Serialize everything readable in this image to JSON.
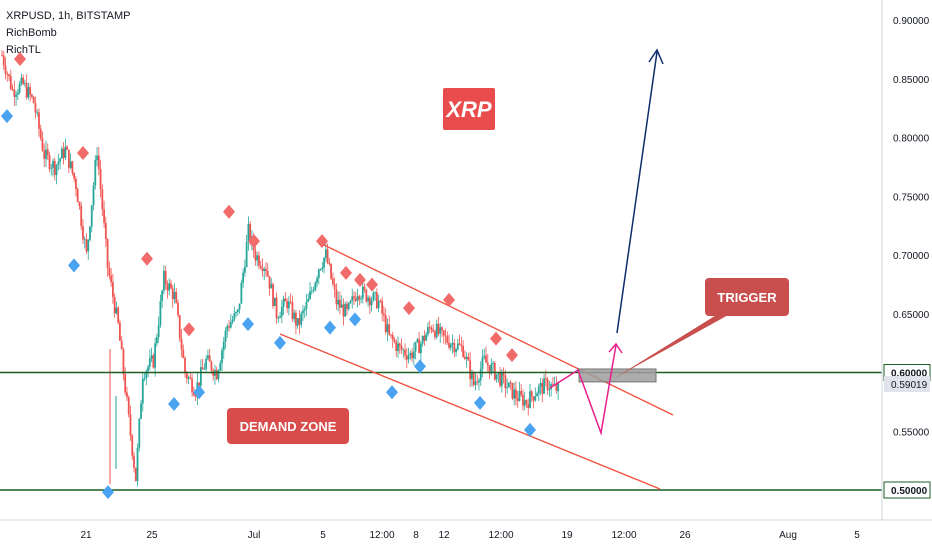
{
  "header": {
    "symbol": "XRPUSD, 1h, BITSTAMP",
    "indicators": [
      "RichBomb",
      "RichTL"
    ]
  },
  "colors": {
    "bull": "#26a69a",
    "bear": "#ef5350",
    "support_line": "#1b5e20",
    "channel_line": "#f05340",
    "arrow_up": "#0d2d6b",
    "arrow_pink": "#e91e8c",
    "label_bg": "#e84c4c",
    "demand_bg": "#d84c4c",
    "trigger_bg": "#c94f4f",
    "marker_red": "#f26b6b",
    "marker_blue": "#4aa3f0"
  },
  "chart_data": {
    "type": "candlestick",
    "instrument": "XRPUSD",
    "timeframe": "1h",
    "exchange": "BITSTAMP",
    "ylim": [
      0.47,
      0.925
    ],
    "y_ticks": [
      "0.90000",
      "0.85000",
      "0.80000",
      "0.75000",
      "0.70000",
      "0.65000",
      "0.60000",
      "0.55000",
      "0.50000"
    ],
    "x_ticks": [
      "21",
      "25",
      "Jul",
      "5",
      "12:00",
      "8",
      "12",
      "12:00",
      "19",
      "12:00",
      "26",
      "Aug",
      "5"
    ],
    "price_path": [
      [
        0,
        0.87
      ],
      [
        3,
        0.84
      ],
      [
        6,
        0.845
      ],
      [
        9,
        0.83
      ],
      [
        12,
        0.785
      ],
      [
        15,
        0.775
      ],
      [
        18,
        0.79
      ],
      [
        21,
        0.76
      ],
      [
        24,
        0.7
      ],
      [
        27,
        0.79
      ],
      [
        30,
        0.69
      ],
      [
        33,
        0.64
      ],
      [
        36,
        0.56
      ],
      [
        38,
        0.51
      ],
      [
        40,
        0.6
      ],
      [
        43,
        0.61
      ],
      [
        46,
        0.68
      ],
      [
        49,
        0.665
      ],
      [
        52,
        0.6
      ],
      [
        55,
        0.585
      ],
      [
        58,
        0.61
      ],
      [
        61,
        0.6
      ],
      [
        64,
        0.64
      ],
      [
        67,
        0.65
      ],
      [
        70,
        0.72
      ],
      [
        72,
        0.7
      ],
      [
        75,
        0.69
      ],
      [
        78,
        0.65
      ],
      [
        81,
        0.66
      ],
      [
        84,
        0.64
      ],
      [
        87,
        0.66
      ],
      [
        90,
        0.69
      ],
      [
        92,
        0.7
      ],
      [
        95,
        0.66
      ],
      [
        98,
        0.65
      ],
      [
        101,
        0.67
      ],
      [
        104,
        0.665
      ],
      [
        107,
        0.66
      ],
      [
        110,
        0.63
      ],
      [
        113,
        0.62
      ],
      [
        116,
        0.615
      ],
      [
        119,
        0.625
      ],
      [
        122,
        0.64
      ],
      [
        125,
        0.63
      ],
      [
        128,
        0.625
      ],
      [
        131,
        0.62
      ],
      [
        134,
        0.59
      ],
      [
        137,
        0.61
      ],
      [
        140,
        0.6
      ],
      [
        143,
        0.59
      ],
      [
        146,
        0.58
      ],
      [
        149,
        0.575
      ],
      [
        152,
        0.585
      ],
      [
        155,
        0.59
      ],
      [
        158,
        0.585
      ]
    ],
    "current_price": "0.59019",
    "support_levels": [
      {
        "price": "0.60000",
        "label": "0.60000"
      },
      {
        "price": "0.50000",
        "label": "0.50000"
      }
    ],
    "zones": [
      {
        "name": "trigger box",
        "low": 0.592,
        "high": 0.603
      }
    ],
    "annotations": {
      "title_badge": "XRP",
      "demand_label": "DEMAND ZONE",
      "trigger_label": "TRIGGER"
    },
    "pivots_high": [
      0.86,
      0.78,
      0.69,
      0.63,
      0.73,
      0.705,
      0.705,
      0.678,
      0.672,
      0.668,
      0.648,
      0.655,
      0.622,
      0.608
    ],
    "pivots_low": [
      0.825,
      0.698,
      0.505,
      0.58,
      0.59,
      0.648,
      0.632,
      0.645,
      0.652,
      0.59,
      0.612,
      0.581,
      0.558
    ]
  }
}
